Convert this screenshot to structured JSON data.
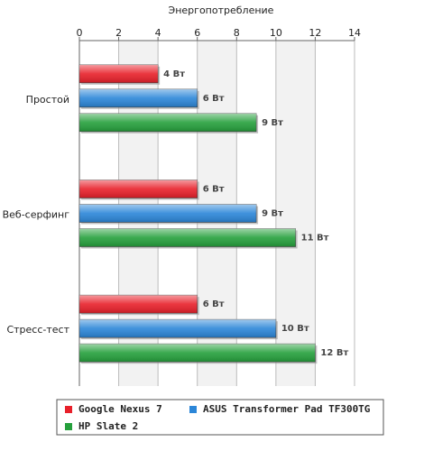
{
  "chart_data": {
    "type": "bar",
    "orientation": "horizontal",
    "title": "Энергопотребление",
    "categories": [
      "Простой",
      "Веб-серфинг",
      "Стресс-тест"
    ],
    "series": [
      {
        "name": "Google Nexus 7",
        "color": "#e8202a",
        "values": [
          4,
          6,
          6
        ],
        "value_labels": [
          "4 Вт",
          "6 Вт",
          "6 Вт"
        ]
      },
      {
        "name": "ASUS Transformer Pad TF300TG",
        "color": "#2b86d8",
        "values": [
          6,
          9,
          10
        ],
        "value_labels": [
          "6 Вт",
          "9 Вт",
          "10 Вт"
        ]
      },
      {
        "name": "HP Slate 2",
        "color": "#25a03c",
        "values": [
          9,
          11,
          12
        ],
        "value_labels": [
          "9 Вт",
          "11 Вт",
          "12 Вт"
        ]
      }
    ],
    "xlim": [
      0,
      14
    ],
    "xticks": [
      0,
      2,
      4,
      6,
      8,
      10,
      12,
      14
    ],
    "grid": true,
    "legend": "bottom"
  }
}
